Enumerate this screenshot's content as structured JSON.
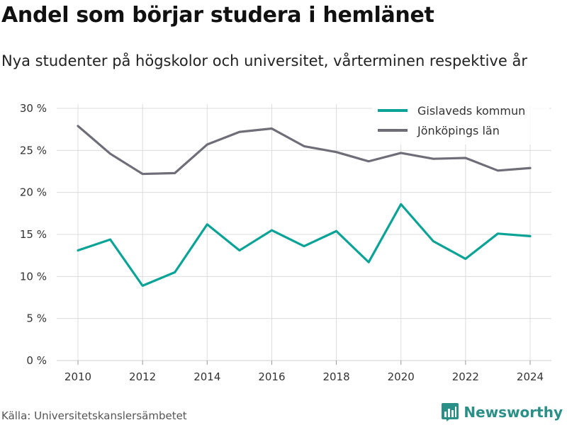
{
  "header": {
    "title": "Andel som börjar studera i hemlänet",
    "subtitle": "Nya studenter på högskolor och universitet, vårterminen respektive år"
  },
  "footer": {
    "source": "Källa: Universitetskanslersämbetet",
    "brand": "Newsworthy",
    "brand_icon": "bar-chart-icon"
  },
  "colors": {
    "gislaved": "#0aa396",
    "jonkoping": "#6e6e78",
    "grid": "#dcdcdc",
    "brand": "#2a8f86"
  },
  "chart_data": {
    "type": "line",
    "title": "Andel som börjar studera i hemlänet",
    "subtitle": "Nya studenter på högskolor och universitet, vårterminen respektive år",
    "x": [
      2010,
      2011,
      2012,
      2013,
      2014,
      2015,
      2016,
      2017,
      2018,
      2019,
      2020,
      2021,
      2022,
      2023,
      2024
    ],
    "series": [
      {
        "name": "Gislaveds kommun",
        "color": "#0aa396",
        "values": [
          13.1,
          14.4,
          8.9,
          10.5,
          16.2,
          13.1,
          15.5,
          13.6,
          15.4,
          11.7,
          18.6,
          14.2,
          12.1,
          15.1,
          14.8
        ]
      },
      {
        "name": "Jönköpings län",
        "color": "#6e6e78",
        "values": [
          27.9,
          24.6,
          22.2,
          22.3,
          25.7,
          27.2,
          27.6,
          25.5,
          24.8,
          23.7,
          24.7,
          24.0,
          24.1,
          22.6,
          22.9
        ]
      }
    ],
    "xticks": [
      "2010",
      "2012",
      "2014",
      "2016",
      "2018",
      "2020",
      "2022",
      "2024"
    ],
    "yticks": [
      "0 %",
      "5 %",
      "10 %",
      "15 %",
      "20 %",
      "25 %",
      "30 %"
    ],
    "ylim": [
      0,
      30
    ],
    "xlim": [
      2010,
      2024
    ],
    "grid": true,
    "legend": "top-right"
  }
}
